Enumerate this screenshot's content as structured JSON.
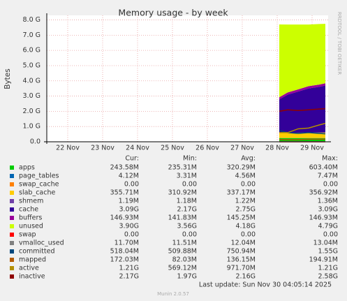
{
  "chart_data": {
    "type": "area",
    "title": "Memory usage - by week",
    "y_label": "Bytes",
    "side_label": "RRDTOOL / TOBI OETIKER",
    "x": [
      28.06,
      28.3,
      28.6,
      28.9,
      29.2,
      29.38
    ],
    "xlim": [
      21.4,
      29.46
    ],
    "xticks": [
      {
        "value": 22,
        "label": "22 Nov"
      },
      {
        "value": 23,
        "label": "23 Nov"
      },
      {
        "value": 24,
        "label": "24 Nov"
      },
      {
        "value": 25,
        "label": "25 Nov"
      },
      {
        "value": 26,
        "label": "26 Nov"
      },
      {
        "value": 27,
        "label": "27 Nov"
      },
      {
        "value": 28,
        "label": "28 Nov"
      },
      {
        "value": 29,
        "label": "29 Nov"
      }
    ],
    "ylim": [
      0,
      8.3
    ],
    "yticks": [
      {
        "value": 0,
        "label": "0.0"
      },
      {
        "value": 1,
        "label": "1.0 G"
      },
      {
        "value": 2,
        "label": "2.0 G"
      },
      {
        "value": 3,
        "label": "3.0 G"
      },
      {
        "value": 4,
        "label": "4.0 G"
      },
      {
        "value": 5,
        "label": "5.0 G"
      },
      {
        "value": 6,
        "label": "6.0 G"
      },
      {
        "value": 7,
        "label": "7.0 G"
      },
      {
        "value": 8,
        "label": "8.0 G"
      }
    ],
    "grid": true,
    "columns": [
      "Cur:",
      "Min:",
      "Avg:",
      "Max:"
    ],
    "series": [
      {
        "name": "apps",
        "color": "#00cc00",
        "kind": "stack",
        "values": [
          0.24,
          0.24,
          0.24,
          0.24,
          0.24,
          0.24
        ],
        "stats": [
          "243.58M",
          "235.31M",
          "320.29M",
          "603.40M"
        ]
      },
      {
        "name": "page_tables",
        "color": "#0066b3",
        "kind": "stack",
        "values": [
          0.004,
          0.004,
          0.004,
          0.004,
          0.004,
          0.004
        ],
        "stats": [
          "4.12M",
          "3.31M",
          "4.56M",
          "7.47M"
        ]
      },
      {
        "name": "swap_cache",
        "color": "#ff8000",
        "kind": "stack",
        "values": [
          0,
          0,
          0,
          0,
          0,
          0
        ],
        "stats": [
          "0.00",
          "0.00",
          "0.00",
          "0.00"
        ]
      },
      {
        "name": "slab_cache",
        "color": "#ffcc00",
        "kind": "stack",
        "values": [
          0.34,
          0.35,
          0.35,
          0.36,
          0.36,
          0.36
        ],
        "stats": [
          "355.71M",
          "310.92M",
          "337.17M",
          "356.92M"
        ]
      },
      {
        "name": "shmem",
        "color": "#7040a8",
        "kind": "stack",
        "values": [
          0.001,
          0.001,
          0.001,
          0.001,
          0.001,
          0.001
        ],
        "stats": [
          "1.19M",
          "1.18M",
          "1.22M",
          "1.36M"
        ]
      },
      {
        "name": "cache",
        "color": "#330099",
        "kind": "stack",
        "values": [
          2.2,
          2.5,
          2.7,
          2.9,
          3.0,
          3.09
        ],
        "stats": [
          "3.09G",
          "2.17G",
          "2.75G",
          "3.09G"
        ]
      },
      {
        "name": "buffers",
        "color": "#990099",
        "kind": "stack",
        "values": [
          0.14,
          0.145,
          0.145,
          0.146,
          0.147,
          0.147
        ],
        "stats": [
          "146.93M",
          "141.83M",
          "145.25M",
          "146.93M"
        ]
      },
      {
        "name": "unused",
        "color": "#ccff00",
        "kind": "stack",
        "values": [
          4.78,
          4.46,
          4.26,
          4.05,
          3.98,
          3.9
        ],
        "stats": [
          "3.90G",
          "3.56G",
          "4.18G",
          "4.79G"
        ]
      },
      {
        "name": "swap",
        "color": "#ff0000",
        "kind": "line",
        "values": [
          0,
          0,
          0,
          0,
          0,
          0
        ],
        "stats": [
          "0.00",
          "0.00",
          "0.00",
          "0.00"
        ]
      },
      {
        "name": "vmalloc_used",
        "color": "#808080",
        "kind": "line",
        "values": [
          0.012,
          0.012,
          0.012,
          0.012,
          0.012,
          0.012
        ],
        "stats": [
          "11.70M",
          "11.51M",
          "12.04M",
          "13.04M"
        ]
      },
      {
        "name": "committed",
        "color": "#00487d",
        "kind": "line",
        "values": [
          0.75,
          0.6,
          0.55,
          0.6,
          0.55,
          0.52
        ],
        "stats": [
          "518.04M",
          "509.88M",
          "750.94M",
          "1.55G"
        ]
      },
      {
        "name": "mapped",
        "color": "#b35a00",
        "kind": "line",
        "values": [
          0.15,
          0.14,
          0.14,
          0.17,
          0.17,
          0.172
        ],
        "stats": [
          "172.03M",
          "82.03M",
          "136.15M",
          "194.91M"
        ]
      },
      {
        "name": "active",
        "color": "#b38f00",
        "kind": "line",
        "values": [
          0.6,
          0.6,
          0.85,
          0.9,
          1.1,
          1.21
        ],
        "stats": [
          "1.21G",
          "569.12M",
          "971.70M",
          "1.21G"
        ]
      },
      {
        "name": "inactive",
        "color": "#8f0000",
        "kind": "line",
        "values": [
          2.0,
          2.1,
          2.05,
          2.1,
          2.15,
          2.17
        ],
        "stats": [
          "2.17G",
          "1.97G",
          "2.16G",
          "2.58G"
        ]
      }
    ],
    "last_update": "Last update: Sun Nov 30 04:05:14 2025",
    "footer": "Munin 2.0.57"
  }
}
